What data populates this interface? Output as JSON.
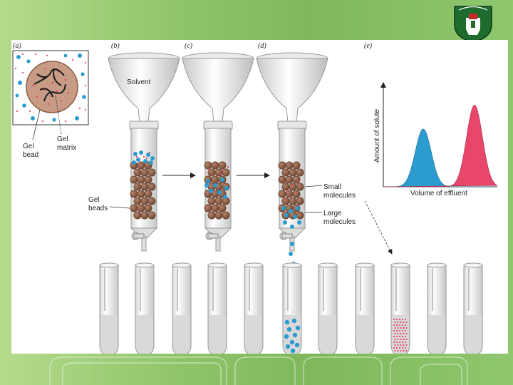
{
  "panels": {
    "a": "(a)",
    "b": "(b)",
    "c": "(c)",
    "d": "(d)",
    "e": "(e)"
  },
  "labels": {
    "gel_bead": [
      "Gel",
      "bead"
    ],
    "gel_matrix": [
      "Gel",
      "matrix"
    ],
    "gel_beads": [
      "Gel",
      "beads"
    ],
    "solvent": "Solvent",
    "small_molecules": [
      "Small",
      "molecules"
    ],
    "large_molecules": [
      "Large",
      "molecules"
    ]
  },
  "chart_data": {
    "type": "area",
    "xlabel": "Volume of effluent",
    "ylabel": "Amount of solute",
    "series": [
      {
        "peak_position": 0.35,
        "peak_height": 0.58,
        "color": "#2b9bd0"
      },
      {
        "peak_position": 0.8,
        "peak_height": 0.82,
        "color": "#e8466b"
      }
    ]
  },
  "colors": {
    "large_molecule": "#2b9bd0",
    "small_molecule": "#e8466b",
    "gel_bead": "#8b5e46",
    "background": "#8fc46a"
  }
}
